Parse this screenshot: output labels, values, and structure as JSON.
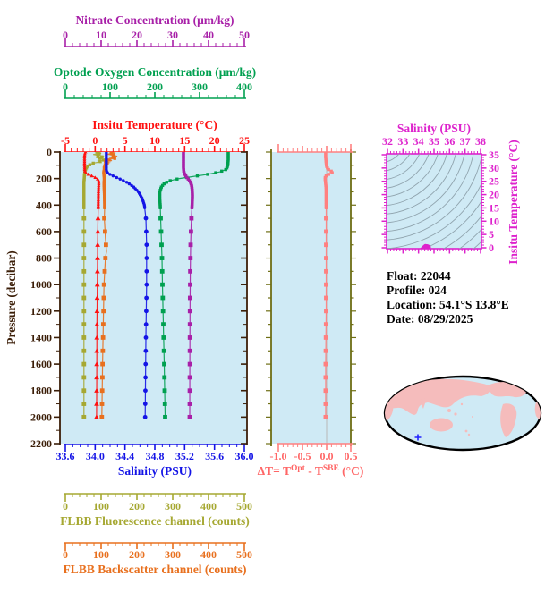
{
  "float_info": {
    "lines": [
      "Float:  22044",
      "Profile:  024",
      "Location:  54.1°S  13.8°E",
      "Date:  08/29/2025"
    ]
  },
  "colors": {
    "plot_background": "#cfeaf5",
    "map_land": "#f5bcbc",
    "map_ocean": "#cfeaf5",
    "map_outline": "#000000",
    "map_marker": "#2222ff",
    "ts_contours": "#90a4ae",
    "delta_zero_line": "#b8b8b8"
  },
  "chart_data": {
    "type": "line",
    "sampling": {
      "dense_step": 12,
      "dense_max": 420,
      "sparse_start": 500,
      "sparse_step": 100,
      "end": 2000
    },
    "panels": {
      "main": {
        "y_axis": {
          "label": "Pressure (decibar)",
          "min": 0,
          "max": 2200,
          "ticks": [
            0,
            200,
            400,
            600,
            800,
            1000,
            1200,
            1400,
            1600,
            1800,
            2000,
            2200
          ],
          "tick_labels": [
            "0",
            "200",
            "400",
            "600",
            "800",
            "1000",
            "1200",
            "1400",
            "1600",
            "1800",
            "2000",
            "2200"
          ],
          "minor_step": 100,
          "color": "#3b1e08"
        },
        "x_axes": [
          {
            "id": "nitrate",
            "title": "Nitrate Concentration (μm/kg)",
            "min": 0,
            "max": 50,
            "ticks": [
              0,
              10,
              20,
              30,
              40,
              50
            ],
            "tick_labels": [
              "0",
              "10",
              "20",
              "30",
              "40",
              "50"
            ],
            "minor_step": 2,
            "color": "#a820a8"
          },
          {
            "id": "oxygen",
            "title": "Optode Oxygen Concentration (μm/kg)",
            "min": 0,
            "max": 400,
            "ticks": [
              0,
              100,
              200,
              300,
              400
            ],
            "tick_labels": [
              "0",
              "100",
              "200",
              "300",
              "400"
            ],
            "minor_step": 20,
            "color": "#00a050"
          },
          {
            "id": "temperature",
            "title": "Insitu Temperature (°C)",
            "min": -5,
            "max": 25,
            "ticks": [
              -5,
              0,
              5,
              10,
              15,
              20,
              25
            ],
            "tick_labels": [
              "-5",
              "0",
              "5",
              "10",
              "15",
              "20",
              "25"
            ],
            "minor_step": 1,
            "color": "#ff1010"
          },
          {
            "id": "salinity",
            "title": "Salinity (PSU)",
            "min": 33.6,
            "max": 36.0,
            "ticks": [
              33.6,
              34.0,
              34.4,
              34.8,
              35.2,
              35.6,
              36.0
            ],
            "tick_labels": [
              "33.6",
              "34.0",
              "34.4",
              "34.8",
              "35.2",
              "35.6",
              "36.0"
            ],
            "minor_step": 0.1,
            "color": "#1414e6"
          },
          {
            "id": "fluorescence",
            "title": "FLBB Fluorescence channel (counts)",
            "min": 0,
            "max": 500,
            "ticks": [
              0,
              100,
              200,
              300,
              400,
              500
            ],
            "tick_labels": [
              "0",
              "100",
              "200",
              "300",
              "400",
              "500"
            ],
            "minor_step": 20,
            "color": "#a6a832"
          },
          {
            "id": "backscatter",
            "title": "FLBB Backscatter channel (counts)",
            "min": 0,
            "max": 500,
            "ticks": [
              0,
              100,
              200,
              300,
              400,
              500
            ],
            "tick_labels": [
              "0",
              "100",
              "200",
              "300",
              "400",
              "500"
            ],
            "minor_step": 20,
            "color": "#e8701e"
          }
        ],
        "series": [
          {
            "id": "fluorescence",
            "axis": "fluorescence",
            "color": "#a6a832",
            "marker": "square",
            "points": [
              [
                0,
                88
              ],
              [
                10,
                100
              ],
              [
                18,
                78
              ],
              [
                26,
                95
              ],
              [
                34,
                108
              ],
              [
                42,
                86
              ],
              [
                50,
                100
              ],
              [
                58,
                112
              ],
              [
                66,
                90
              ],
              [
                74,
                100
              ],
              [
                82,
                80
              ],
              [
                90,
                72
              ],
              [
                100,
                66
              ],
              [
                115,
                60
              ],
              [
                135,
                56
              ],
              [
                160,
                54
              ],
              [
                190,
                53
              ],
              [
                230,
                52
              ],
              [
                300,
                52
              ],
              [
                400,
                52
              ],
              [
                600,
                52
              ],
              [
                1000,
                52
              ],
              [
                1500,
                52
              ],
              [
                2000,
                52
              ]
            ]
          },
          {
            "id": "backscatter",
            "axis": "backscatter",
            "color": "#e8701e",
            "marker": "square",
            "points": [
              [
                0,
                128
              ],
              [
                8,
                140
              ],
              [
                16,
                118
              ],
              [
                24,
                135
              ],
              [
                32,
                145
              ],
              [
                40,
                122
              ],
              [
                48,
                138
              ],
              [
                56,
                115
              ],
              [
                64,
                130
              ],
              [
                72,
                112
              ],
              [
                80,
                122
              ],
              [
                90,
                110
              ],
              [
                100,
                112
              ],
              [
                115,
                108
              ],
              [
                130,
                110
              ],
              [
                150,
                107
              ],
              [
                175,
                108
              ],
              [
                200,
                109
              ],
              [
                240,
                108
              ],
              [
                300,
                109
              ],
              [
                400,
                110
              ],
              [
                500,
                109
              ],
              [
                650,
                112
              ],
              [
                750,
                115
              ],
              [
                800,
                112
              ],
              [
                1000,
                108
              ],
              [
                1300,
                106
              ],
              [
                1600,
                104
              ],
              [
                2000,
                102
              ]
            ]
          },
          {
            "id": "temperature",
            "axis": "temperature",
            "color": "#ff1010",
            "marker": "triangle",
            "points": [
              [
                0,
                -1.62
              ],
              [
                15,
                -1.75
              ],
              [
                30,
                -1.78
              ],
              [
                60,
                -1.78
              ],
              [
                100,
                -1.78
              ],
              [
                140,
                -1.76
              ],
              [
                158,
                -1.55
              ],
              [
                172,
                -1.0
              ],
              [
                185,
                -0.3
              ],
              [
                200,
                0.35
              ],
              [
                215,
                0.58
              ],
              [
                235,
                0.62
              ],
              [
                260,
                0.58
              ],
              [
                300,
                0.55
              ],
              [
                400,
                0.52
              ],
              [
                500,
                0.48
              ],
              [
                700,
                0.42
              ],
              [
                900,
                0.38
              ],
              [
                1100,
                0.34
              ],
              [
                1300,
                0.3
              ],
              [
                1500,
                0.28
              ],
              [
                1700,
                0.26
              ],
              [
                2000,
                0.24
              ]
            ]
          },
          {
            "id": "salinity",
            "axis": "salinity",
            "color": "#1414e6",
            "marker": "circle",
            "points": [
              [
                0,
                34.15
              ],
              [
                140,
                34.15
              ],
              [
                160,
                34.17
              ],
              [
                180,
                34.24
              ],
              [
                200,
                34.32
              ],
              [
                230,
                34.43
              ],
              [
                260,
                34.51
              ],
              [
                300,
                34.58
              ],
              [
                350,
                34.63
              ],
              [
                400,
                34.66
              ],
              [
                500,
                34.68
              ],
              [
                700,
                34.69
              ],
              [
                1000,
                34.69
              ],
              [
                1400,
                34.68
              ],
              [
                2000,
                34.67
              ]
            ]
          },
          {
            "id": "oxygen",
            "axis": "oxygen",
            "color": "#00a050",
            "marker": "square",
            "points": [
              [
                0,
                364
              ],
              [
                60,
                364
              ],
              [
                100,
                363
              ],
              [
                130,
                360
              ],
              [
                150,
                345
              ],
              [
                170,
                315
              ],
              [
                185,
                285
              ],
              [
                200,
                255
              ],
              [
                215,
                235
              ],
              [
                235,
                222
              ],
              [
                260,
                215
              ],
              [
                300,
                211
              ],
              [
                350,
                211
              ],
              [
                400,
                212
              ],
              [
                600,
                214
              ],
              [
                800,
                216
              ],
              [
                1000,
                217
              ],
              [
                1300,
                219
              ],
              [
                1600,
                221
              ],
              [
                2000,
                223
              ]
            ]
          },
          {
            "id": "nitrate",
            "axis": "nitrate",
            "color": "#a820a8",
            "marker": "square",
            "points": [
              [
                0,
                33.0
              ],
              [
                80,
                33.0
              ],
              [
                120,
                33.0
              ],
              [
                150,
                33.1
              ],
              [
                170,
                33.4
              ],
              [
                190,
                33.9
              ],
              [
                210,
                34.5
              ],
              [
                230,
                35.0
              ],
              [
                255,
                35.3
              ],
              [
                290,
                35.45
              ],
              [
                330,
                35.5
              ],
              [
                380,
                35.45
              ],
              [
                450,
                35.3
              ],
              [
                550,
                35.15
              ],
              [
                700,
                35.0
              ],
              [
                900,
                34.9
              ],
              [
                1200,
                34.82
              ],
              [
                1600,
                34.78
              ],
              [
                2000,
                34.75
              ]
            ]
          }
        ]
      },
      "delta": {
        "title_parts": [
          "ΔT= T",
          "Opt",
          " - T",
          "SBE",
          " (°C)"
        ],
        "x_axis": {
          "min": -1.0,
          "max": 0.5,
          "ticks": [
            -1.0,
            -0.5,
            0.0,
            0.5
          ],
          "tick_labels": [
            "-1.0",
            "-0.5",
            "0.0",
            "0.5"
          ],
          "minor_step": 0.1,
          "color": "#ff8080"
        },
        "border_color": "#6e6e14",
        "label_color": "#ff6666",
        "series": {
          "id": "delta_t",
          "color": "#ff8080",
          "marker": "square",
          "points": [
            [
              0,
              -0.02
            ],
            [
              40,
              -0.02
            ],
            [
              80,
              -0.01
            ],
            [
              110,
              0.0
            ],
            [
              130,
              0.03
            ],
            [
              145,
              0.1
            ],
            [
              155,
              0.12
            ],
            [
              165,
              0.06
            ],
            [
              175,
              0.0
            ],
            [
              190,
              -0.03
            ],
            [
              210,
              -0.03
            ],
            [
              240,
              -0.02
            ],
            [
              280,
              -0.01
            ],
            [
              350,
              -0.01
            ],
            [
              500,
              -0.01
            ],
            [
              800,
              -0.01
            ],
            [
              1200,
              -0.01
            ],
            [
              1600,
              -0.02
            ],
            [
              2000,
              -0.02
            ]
          ]
        }
      },
      "ts": {
        "x_title": "Salinity (PSU)",
        "y_title": "Insitu Temperature (°C)",
        "x_axis": {
          "min": 32,
          "max": 38,
          "ticks": [
            32,
            33,
            34,
            35,
            36,
            37,
            38
          ],
          "tick_labels": [
            "32",
            "33",
            "34",
            "35",
            "36",
            "37",
            "38"
          ],
          "minor_step": 0.2,
          "color": "#dd22cc"
        },
        "y_axis": {
          "min": 0,
          "max": 35,
          "ticks": [
            0,
            5,
            10,
            15,
            20,
            25,
            30,
            35
          ],
          "tick_labels": [
            "0",
            "5",
            "10",
            "15",
            "20",
            "25",
            "30",
            "35"
          ],
          "minor_step": 1,
          "color": "#dd22cc"
        },
        "curve_color": "#dd22cc",
        "curve": [
          [
            34.15,
            -1.8
          ],
          [
            34.17,
            -1.4
          ],
          [
            34.24,
            -0.6
          ],
          [
            34.32,
            0.1
          ],
          [
            34.43,
            0.45
          ],
          [
            34.51,
            0.62
          ],
          [
            34.58,
            0.55
          ],
          [
            34.63,
            0.4
          ],
          [
            34.67,
            0.28
          ]
        ]
      }
    }
  }
}
